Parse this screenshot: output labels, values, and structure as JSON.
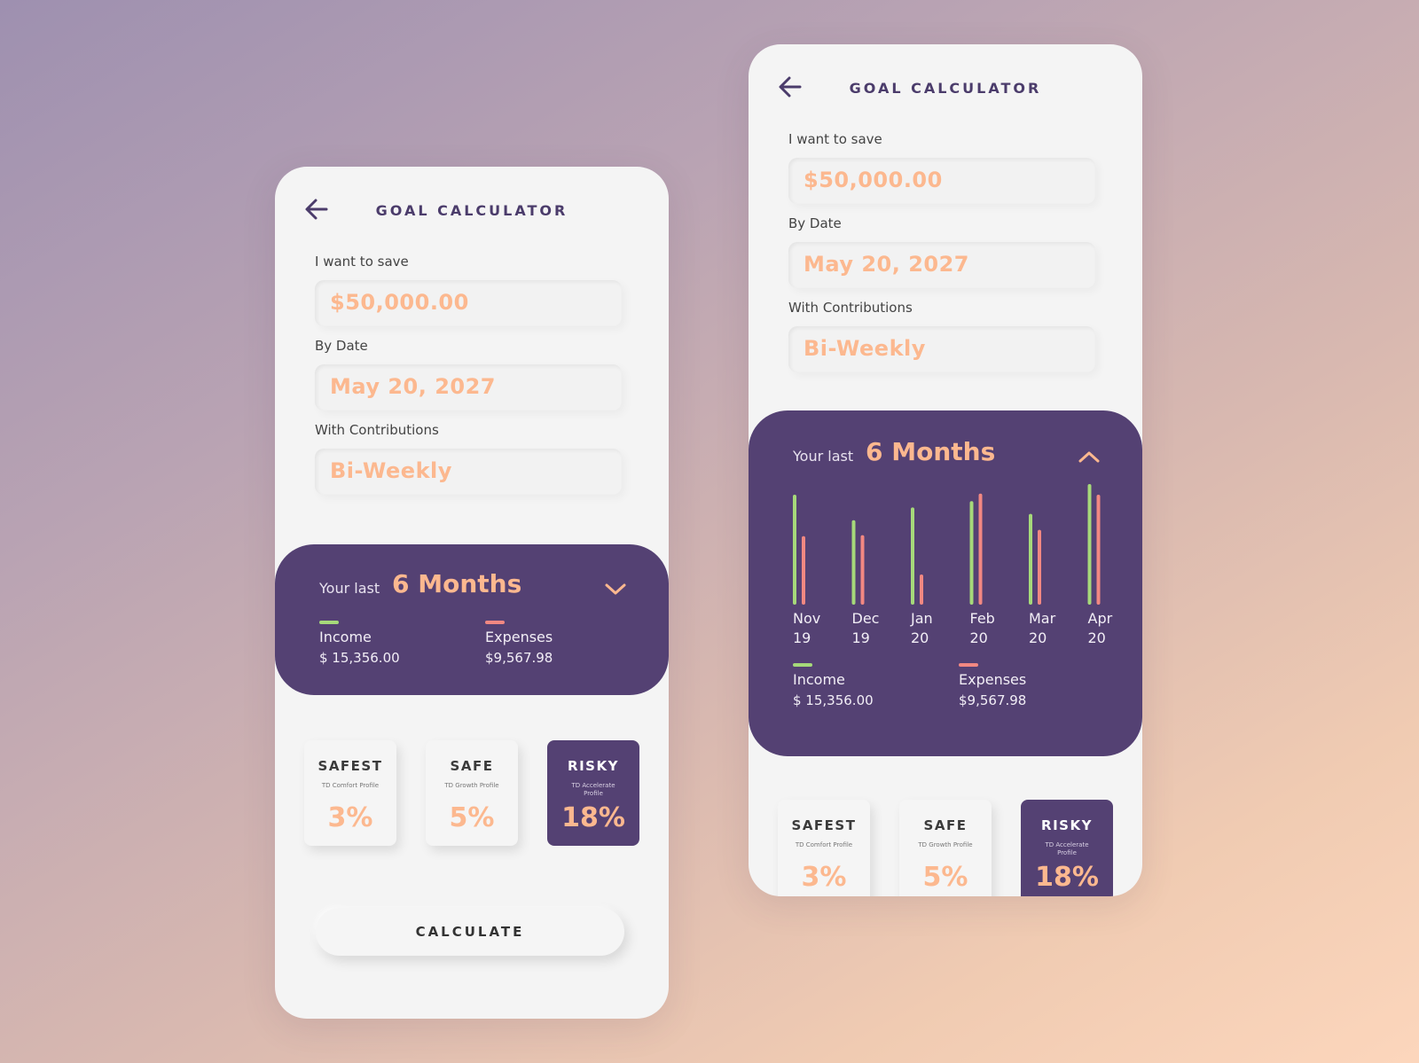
{
  "screens": [
    {
      "title": "GOAL CALCULATOR",
      "fields": [
        {
          "label": "I want to save",
          "value": "$50,000.00"
        },
        {
          "label": "By Date",
          "value": "May 20, 2027"
        },
        {
          "label": "With Contributions",
          "value": "Bi-Weekly"
        }
      ],
      "summary": {
        "prefix": "Your last",
        "period": "6 Months",
        "toggle_icon": "chevron-down-icon",
        "income_label": "Income",
        "income_value": "$ 15,356.00",
        "expenses_label": "Expenses",
        "expenses_value": "$9,567.98"
      },
      "profiles": [
        {
          "title": "SAFEST",
          "subtitle": "TD Comfort Profile",
          "rate": "3%",
          "selected": false
        },
        {
          "title": "SAFE",
          "subtitle": "TD Growth Profile",
          "rate": "5%",
          "selected": false
        },
        {
          "title": "RISKY",
          "subtitle": "TD Accelerate Profile",
          "rate": "18%",
          "selected": true
        }
      ],
      "calculate_label": "CALCULATE"
    },
    {
      "title": "GOAL CALCULATOR",
      "fields": [
        {
          "label": "I want to save",
          "value": "$50,000.00"
        },
        {
          "label": "By Date",
          "value": "May 20, 2027"
        },
        {
          "label": "With Contributions",
          "value": "Bi-Weekly"
        }
      ],
      "summary": {
        "prefix": "Your last",
        "period": "6 Months",
        "toggle_icon": "chevron-up-icon",
        "income_label": "Income",
        "income_value": "$ 15,356.00",
        "expenses_label": "Expenses",
        "expenses_value": "$9,567.98"
      },
      "profiles": [
        {
          "title": "SAFEST",
          "subtitle": "TD Comfort Profile",
          "rate": "3%",
          "selected": false
        },
        {
          "title": "SAFE",
          "subtitle": "TD Growth Profile",
          "rate": "5%",
          "selected": false
        },
        {
          "title": "RISKY",
          "subtitle": "TD Accelerate Profile",
          "rate": "18%",
          "selected": true
        }
      ]
    }
  ],
  "colors": {
    "income": "#a6d97a",
    "expenses": "#f28882",
    "accent": "#fcb88f",
    "panel": "#544173"
  },
  "chart_data": {
    "type": "bar",
    "categories": [
      [
        "Nov",
        "19"
      ],
      [
        "Dec",
        "19"
      ],
      [
        "Jan",
        "20"
      ],
      [
        "Feb",
        "20"
      ],
      [
        "Mar",
        "20"
      ],
      [
        "Apr",
        "20"
      ]
    ],
    "series": [
      {
        "name": "Income",
        "values": [
          100,
          76,
          88,
          94,
          82,
          110
        ]
      },
      {
        "name": "Expenses",
        "values": [
          61,
          62,
          25,
          101,
          67,
          100
        ]
      }
    ],
    "ylim": [
      0,
      110
    ]
  }
}
